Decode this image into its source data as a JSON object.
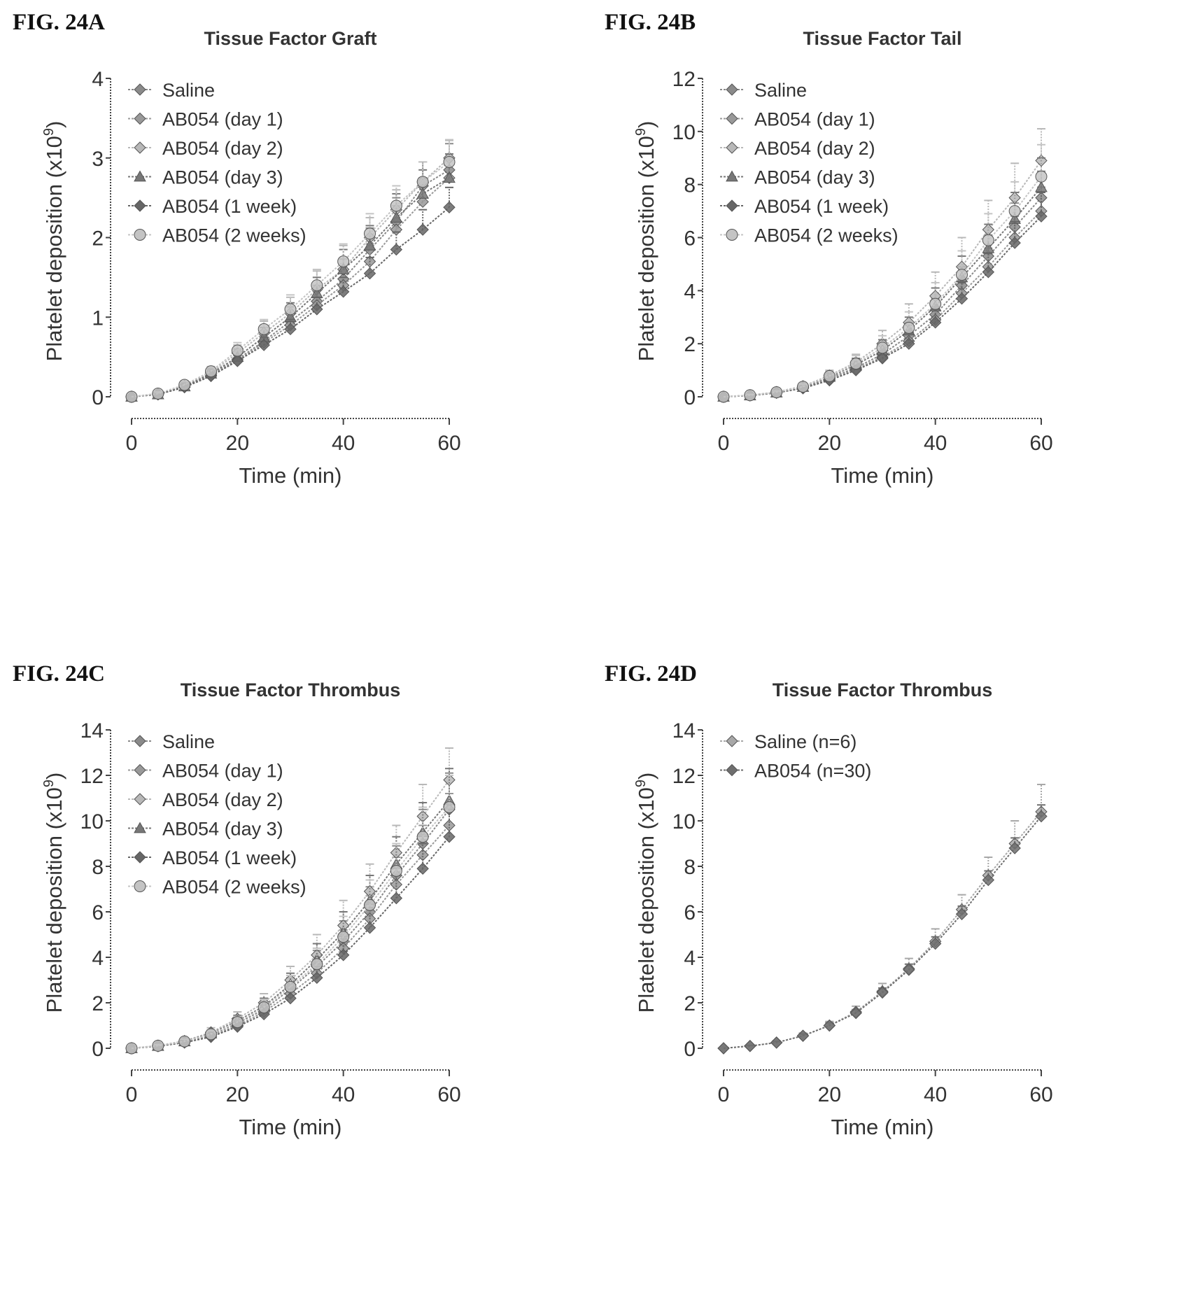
{
  "chart_data": [
    {
      "type": "line",
      "fig_label": "FIG. 24A",
      "title": "Tissue Factor Graft",
      "xlabel": "Time (min)",
      "ylabel": "Platelet deposition (x10",
      "ylabel_exp": "9",
      "ylabel_close": ")",
      "xlim": [
        0,
        60
      ],
      "ylim": [
        0,
        4
      ],
      "xticks": [
        0,
        20,
        40,
        60
      ],
      "yticks": [
        0,
        1,
        2,
        3,
        4
      ],
      "x": [
        0,
        5,
        10,
        15,
        20,
        25,
        30,
        35,
        40,
        45,
        50,
        55,
        60
      ],
      "legend_position": "top-left",
      "series": [
        {
          "name": "Saline",
          "color": "#8a8a8a",
          "values": [
            0,
            0.03,
            0.13,
            0.28,
            0.47,
            0.7,
            0.95,
            1.2,
            1.48,
            1.85,
            2.2,
            2.65,
            2.85
          ],
          "errors": [
            0,
            0.02,
            0.04,
            0.06,
            0.1,
            0.13,
            0.18,
            0.2,
            0.25,
            0.27,
            0.3,
            0.3,
            0.33
          ]
        },
        {
          "name": "AB054 (day 1)",
          "color": "#999999",
          "values": [
            0,
            0.03,
            0.12,
            0.27,
            0.45,
            0.68,
            0.9,
            1.15,
            1.4,
            1.7,
            2.1,
            2.45,
            2.75
          ],
          "errors": [
            0,
            0.02,
            0.03,
            0.05,
            0.08,
            0.1,
            0.15,
            0.18,
            0.2,
            0.22,
            0.3,
            0.3,
            0.3
          ]
        },
        {
          "name": "AB054 (day 2)",
          "color": "#b8b8b8",
          "values": [
            0,
            0.04,
            0.14,
            0.3,
            0.55,
            0.8,
            1.05,
            1.35,
            1.6,
            2.0,
            2.35,
            2.7,
            3.0
          ],
          "errors": [
            0,
            0.02,
            0.04,
            0.06,
            0.1,
            0.15,
            0.2,
            0.23,
            0.3,
            0.25,
            0.25,
            0.25,
            0.22
          ]
        },
        {
          "name": "AB054 (day 3)",
          "color": "#777777",
          "values": [
            0,
            0.03,
            0.13,
            0.29,
            0.5,
            0.75,
            1.0,
            1.3,
            1.6,
            1.9,
            2.25,
            2.55,
            2.75
          ],
          "errors": [
            0,
            0.02,
            0.04,
            0.06,
            0.1,
            0.12,
            0.18,
            0.2,
            0.25,
            0.25,
            0.3,
            0.3,
            0.3
          ]
        },
        {
          "name": "AB054 (1 week)",
          "color": "#666666",
          "values": [
            0,
            0.03,
            0.12,
            0.26,
            0.45,
            0.65,
            0.85,
            1.1,
            1.32,
            1.55,
            1.85,
            2.1,
            2.38
          ],
          "errors": [
            0,
            0.02,
            0.03,
            0.05,
            0.07,
            0.1,
            0.12,
            0.15,
            0.18,
            0.2,
            0.22,
            0.25,
            0.25
          ]
        },
        {
          "name": "AB054 (2 weeks)",
          "color": "#c4c4c4",
          "values": [
            0,
            0.04,
            0.15,
            0.32,
            0.58,
            0.85,
            1.1,
            1.4,
            1.7,
            2.05,
            2.4,
            2.7,
            2.95
          ],
          "errors": [
            0,
            0.02,
            0.04,
            0.06,
            0.1,
            0.12,
            0.18,
            0.2,
            0.22,
            0.25,
            0.25,
            0.25,
            0.28
          ]
        }
      ]
    },
    {
      "type": "line",
      "fig_label": "FIG. 24B",
      "title": "Tissue Factor Tail",
      "xlabel": "Time (min)",
      "ylabel": "Platelet deposition (x10",
      "ylabel_exp": "9",
      "ylabel_close": ")",
      "xlim": [
        0,
        60
      ],
      "ylim": [
        0,
        12
      ],
      "xticks": [
        0,
        20,
        40,
        60
      ],
      "yticks": [
        0,
        2,
        4,
        6,
        8,
        10,
        12
      ],
      "x": [
        0,
        5,
        10,
        15,
        20,
        25,
        30,
        35,
        40,
        45,
        50,
        55,
        60
      ],
      "legend_position": "top-left",
      "series": [
        {
          "name": "Saline",
          "color": "#8a8a8a",
          "values": [
            0,
            0.05,
            0.15,
            0.35,
            0.7,
            1.1,
            1.6,
            2.3,
            3.1,
            4.2,
            5.3,
            6.4,
            7.5
          ],
          "errors": [
            0,
            0.03,
            0.05,
            0.1,
            0.15,
            0.25,
            0.35,
            0.5,
            0.6,
            0.7,
            0.8,
            0.9,
            1.0
          ]
        },
        {
          "name": "AB054 (day 1)",
          "color": "#999999",
          "values": [
            0,
            0.05,
            0.15,
            0.33,
            0.65,
            1.05,
            1.5,
            2.1,
            2.9,
            3.9,
            4.9,
            6.0,
            7.0
          ],
          "errors": [
            0,
            0.03,
            0.05,
            0.1,
            0.15,
            0.2,
            0.3,
            0.4,
            0.5,
            0.6,
            0.7,
            0.8,
            0.9
          ]
        },
        {
          "name": "AB054 (day 2)",
          "color": "#b8b8b8",
          "values": [
            0,
            0.06,
            0.18,
            0.4,
            0.8,
            1.3,
            2.0,
            2.8,
            3.8,
            4.9,
            6.3,
            7.5,
            8.9
          ],
          "errors": [
            0,
            0.03,
            0.06,
            0.12,
            0.2,
            0.3,
            0.5,
            0.7,
            0.9,
            1.1,
            1.1,
            1.3,
            1.2
          ]
        },
        {
          "name": "AB054 (day 3)",
          "color": "#777777",
          "values": [
            0,
            0.05,
            0.16,
            0.37,
            0.75,
            1.2,
            1.75,
            2.5,
            3.4,
            4.5,
            5.6,
            6.7,
            7.9
          ],
          "errors": [
            0,
            0.03,
            0.05,
            0.1,
            0.15,
            0.25,
            0.4,
            0.5,
            0.7,
            0.8,
            0.9,
            1.0,
            1.1
          ]
        },
        {
          "name": "AB054 (1 week)",
          "color": "#666666",
          "values": [
            0,
            0.05,
            0.15,
            0.32,
            0.62,
            1.0,
            1.45,
            2.0,
            2.8,
            3.7,
            4.7,
            5.8,
            6.8
          ],
          "errors": [
            0,
            0.03,
            0.05,
            0.08,
            0.12,
            0.2,
            0.3,
            0.4,
            0.5,
            0.6,
            0.7,
            0.8,
            0.9
          ]
        },
        {
          "name": "AB054 (2 weeks)",
          "color": "#c4c4c4",
          "values": [
            0,
            0.06,
            0.17,
            0.38,
            0.78,
            1.25,
            1.85,
            2.6,
            3.5,
            4.6,
            5.9,
            7.0,
            8.3
          ],
          "errors": [
            0,
            0.03,
            0.05,
            0.1,
            0.18,
            0.3,
            0.45,
            0.6,
            0.8,
            0.9,
            1.0,
            1.1,
            1.2
          ]
        }
      ]
    },
    {
      "type": "line",
      "fig_label": "FIG. 24C",
      "title": "Tissue Factor Thrombus",
      "xlabel": "Time (min)",
      "ylabel": "Platelet deposition (x10",
      "ylabel_exp": "9",
      "ylabel_close": ")",
      "xlim": [
        0,
        60
      ],
      "ylim": [
        0,
        14
      ],
      "xticks": [
        0,
        20,
        40,
        60
      ],
      "yticks": [
        0,
        2,
        4,
        6,
        8,
        10,
        12,
        14
      ],
      "x": [
        0,
        5,
        10,
        15,
        20,
        25,
        30,
        35,
        40,
        45,
        50,
        55,
        60
      ],
      "legend_position": "top-left",
      "series": [
        {
          "name": "Saline",
          "color": "#8a8a8a",
          "values": [
            0,
            0.1,
            0.3,
            0.6,
            1.1,
            1.7,
            2.6,
            3.6,
            4.7,
            6.0,
            7.6,
            9.0,
            10.5
          ],
          "errors": [
            0,
            0.05,
            0.1,
            0.15,
            0.25,
            0.35,
            0.5,
            0.7,
            0.9,
            1.1,
            1.3,
            1.5,
            1.6
          ]
        },
        {
          "name": "AB054 (day 1)",
          "color": "#999999",
          "values": [
            0,
            0.1,
            0.28,
            0.55,
            1.0,
            1.6,
            2.4,
            3.3,
            4.4,
            5.7,
            7.2,
            8.5,
            9.8
          ],
          "errors": [
            0,
            0.05,
            0.1,
            0.15,
            0.2,
            0.3,
            0.45,
            0.6,
            0.8,
            1.0,
            1.2,
            1.3,
            1.4
          ]
        },
        {
          "name": "AB054 (day 2)",
          "color": "#b8b8b8",
          "values": [
            0,
            0.12,
            0.32,
            0.7,
            1.3,
            2.0,
            3.0,
            4.1,
            5.4,
            6.9,
            8.6,
            10.2,
            11.8
          ],
          "errors": [
            0,
            0.05,
            0.1,
            0.2,
            0.3,
            0.4,
            0.6,
            0.9,
            1.1,
            1.2,
            1.2,
            1.4,
            1.4
          ]
        },
        {
          "name": "AB054 (day 3)",
          "color": "#777777",
          "values": [
            0,
            0.1,
            0.3,
            0.65,
            1.2,
            1.85,
            2.8,
            3.9,
            5.1,
            6.5,
            8.1,
            9.5,
            10.9
          ],
          "errors": [
            0,
            0.05,
            0.1,
            0.15,
            0.25,
            0.35,
            0.5,
            0.7,
            0.9,
            1.1,
            1.2,
            1.3,
            1.4
          ]
        },
        {
          "name": "AB054 (1 week)",
          "color": "#666666",
          "values": [
            0,
            0.09,
            0.25,
            0.5,
            0.95,
            1.5,
            2.2,
            3.1,
            4.1,
            5.3,
            6.6,
            7.9,
            9.3
          ],
          "errors": [
            0,
            0.05,
            0.08,
            0.12,
            0.2,
            0.3,
            0.4,
            0.5,
            0.7,
            0.9,
            1.0,
            1.1,
            1.2
          ]
        },
        {
          "name": "AB054 (2 weeks)",
          "color": "#c4c4c4",
          "values": [
            0,
            0.11,
            0.3,
            0.62,
            1.15,
            1.8,
            2.7,
            3.7,
            4.9,
            6.3,
            7.8,
            9.3,
            10.6
          ],
          "errors": [
            0,
            0.05,
            0.1,
            0.15,
            0.25,
            0.35,
            0.5,
            0.7,
            0.9,
            1.1,
            1.2,
            1.3,
            1.4
          ]
        }
      ]
    },
    {
      "type": "line",
      "fig_label": "FIG. 24D",
      "title": "Tissue Factor Thrombus",
      "xlabel": "Time (min)",
      "ylabel": "Platelet deposition (x10",
      "ylabel_exp": "9",
      "ylabel_close": ")",
      "xlim": [
        0,
        60
      ],
      "ylim": [
        0,
        14
      ],
      "xticks": [
        0,
        20,
        40,
        60
      ],
      "yticks": [
        0,
        2,
        4,
        6,
        8,
        10,
        12,
        14
      ],
      "x": [
        0,
        5,
        10,
        15,
        20,
        25,
        30,
        35,
        40,
        45,
        50,
        55,
        60
      ],
      "legend_position": "top-left",
      "series": [
        {
          "name": "Saline (n=6)",
          "color": "#a8a8a8",
          "values": [
            0,
            0.1,
            0.25,
            0.55,
            1.0,
            1.6,
            2.5,
            3.5,
            4.7,
            6.1,
            7.6,
            9.0,
            10.4
          ],
          "errors": [
            0,
            0.04,
            0.08,
            0.12,
            0.18,
            0.25,
            0.35,
            0.45,
            0.55,
            0.65,
            0.8,
            1.0,
            1.2
          ]
        },
        {
          "name": "AB054 (n=30)",
          "color": "#6e6e6e",
          "values": [
            0,
            0.1,
            0.25,
            0.55,
            1.0,
            1.55,
            2.45,
            3.45,
            4.6,
            5.9,
            7.4,
            8.8,
            10.2
          ],
          "errors": [
            0,
            0.03,
            0.05,
            0.08,
            0.12,
            0.15,
            0.2,
            0.25,
            0.3,
            0.35,
            0.4,
            0.45,
            0.5
          ]
        }
      ]
    }
  ]
}
